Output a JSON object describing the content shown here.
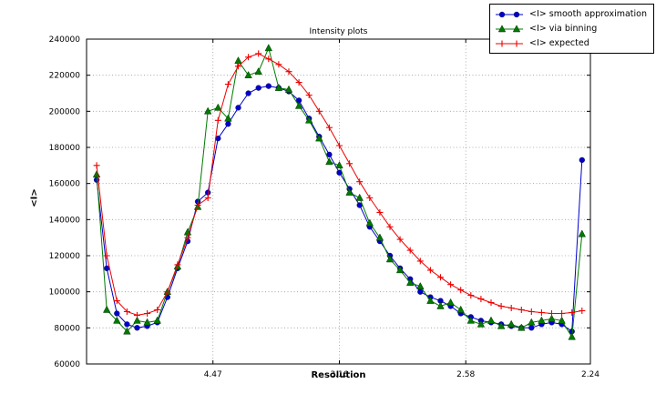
{
  "chart_data": {
    "type": "line",
    "title": "Intensity plots",
    "xlabel": "Resolution",
    "ylabel": "<I>",
    "grid": true,
    "legend_position": "top-right-outside",
    "x_axis": {
      "note_units": "reciprocal resolution squared spacing",
      "range": [
        0,
        0.1993
      ],
      "ticks": [
        0.05,
        0.1,
        0.15,
        0.1993
      ],
      "tick_labels": [
        "4.47",
        "3.16",
        "2.58",
        "2.24"
      ]
    },
    "y_axis": {
      "range": [
        60000,
        240000
      ],
      "ticks": [
        60000,
        80000,
        100000,
        120000,
        140000,
        160000,
        180000,
        200000,
        220000,
        240000
      ],
      "tick_labels": [
        "60000",
        "80000",
        "100000",
        "120000",
        "140000",
        "160000",
        "180000",
        "200000",
        "220000",
        "240000"
      ]
    },
    "x": [
      0.004,
      0.008,
      0.012,
      0.016,
      0.02,
      0.024,
      0.028,
      0.032,
      0.036,
      0.04,
      0.044,
      0.048,
      0.052,
      0.056,
      0.06,
      0.064,
      0.068,
      0.072,
      0.076,
      0.08,
      0.084,
      0.088,
      0.092,
      0.096,
      0.1,
      0.104,
      0.108,
      0.112,
      0.116,
      0.12,
      0.124,
      0.128,
      0.132,
      0.136,
      0.14,
      0.144,
      0.148,
      0.152,
      0.156,
      0.16,
      0.164,
      0.168,
      0.172,
      0.176,
      0.18,
      0.184,
      0.188,
      0.192,
      0.196
    ],
    "series": [
      {
        "name": "<I> smooth approximation",
        "color": "#0000cc",
        "marker": "circle",
        "values": [
          162000,
          113000,
          88000,
          82000,
          80000,
          81000,
          83000,
          97000,
          113000,
          128000,
          150000,
          155000,
          185000,
          193000,
          202000,
          210000,
          213000,
          214000,
          213000,
          211000,
          206000,
          196000,
          186000,
          176000,
          166000,
          157000,
          148000,
          136000,
          128000,
          120000,
          113000,
          107000,
          100000,
          97000,
          95000,
          92000,
          88000,
          86000,
          84000,
          83000,
          82000,
          81000,
          80000,
          80000,
          82000,
          83000,
          82000,
          78000,
          173000
        ]
      },
      {
        "name": "<I> via binning",
        "color": "#007a00",
        "marker": "triangle",
        "values": [
          165000,
          90000,
          84000,
          78000,
          84000,
          83000,
          84000,
          100000,
          114000,
          133000,
          147000,
          200000,
          202000,
          196000,
          228000,
          220000,
          222000,
          235000,
          213000,
          212000,
          203000,
          195000,
          185000,
          172000,
          170000,
          155000,
          152000,
          138000,
          130000,
          118000,
          112000,
          105000,
          103000,
          95000,
          92000,
          94000,
          90000,
          84000,
          82000,
          84000,
          81000,
          82000,
          80000,
          83000,
          84000,
          85000,
          84000,
          75000,
          132000
        ]
      },
      {
        "name": "<I> expected",
        "color": "#ee0000",
        "marker": "plus",
        "values": [
          170000,
          120000,
          95000,
          89000,
          87000,
          88000,
          90000,
          100000,
          115000,
          130000,
          148000,
          152000,
          195000,
          215000,
          225000,
          230000,
          232000,
          229000,
          226000,
          222000,
          216000,
          209000,
          200000,
          191000,
          181000,
          171000,
          161000,
          152000,
          144000,
          136000,
          129000,
          123000,
          117000,
          112000,
          108000,
          104000,
          101000,
          98000,
          96000,
          94000,
          92000,
          91000,
          90000,
          89000,
          88500,
          88000,
          88000,
          88500,
          89500
        ]
      }
    ]
  }
}
